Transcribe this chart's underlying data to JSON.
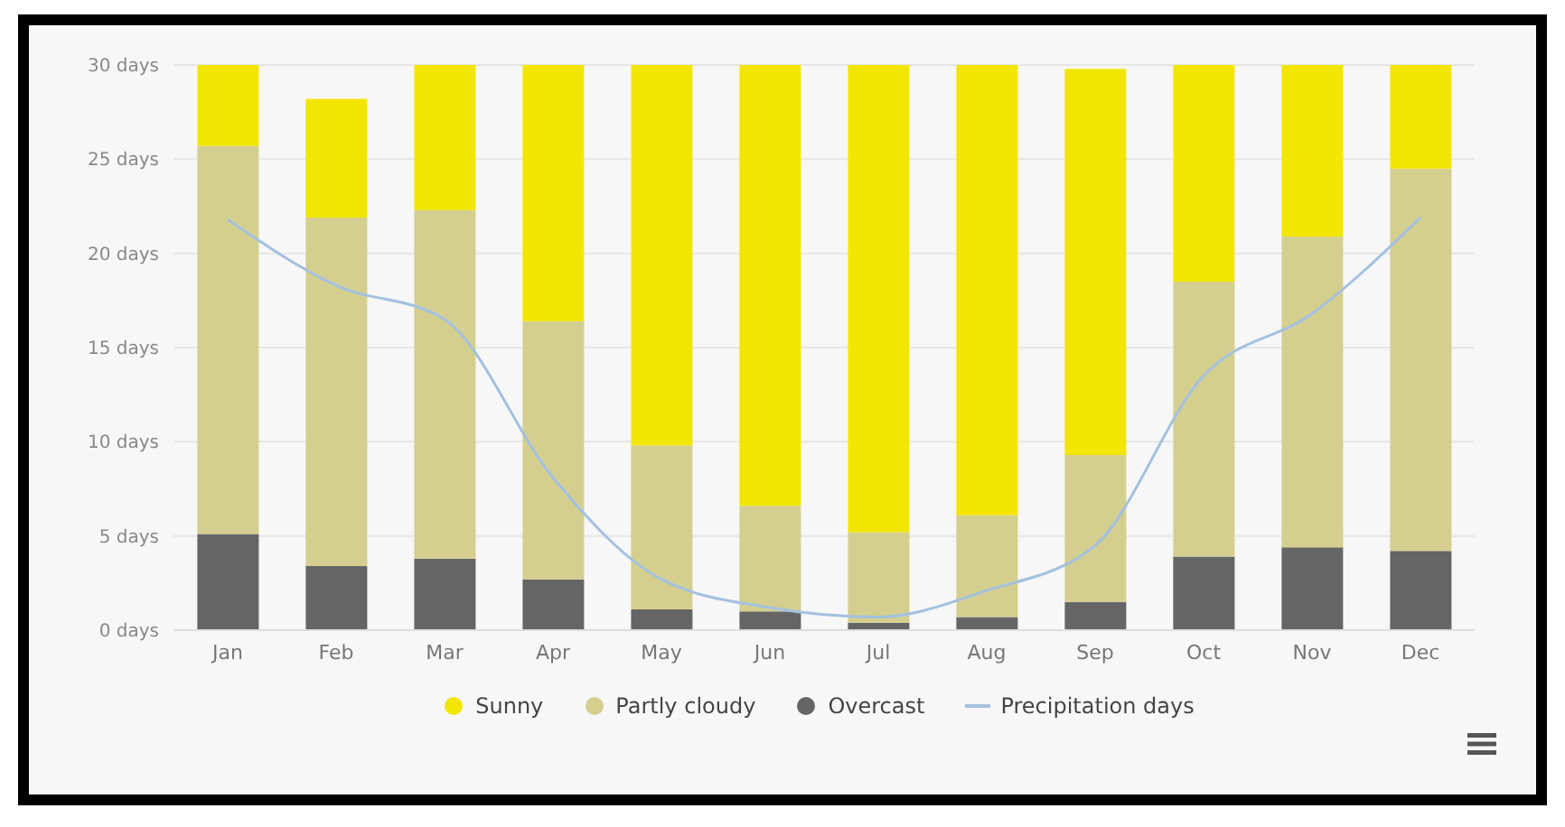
{
  "chart_data": {
    "type": "bar",
    "stacked": true,
    "categories": [
      "Jan",
      "Feb",
      "Mar",
      "Apr",
      "May",
      "Jun",
      "Jul",
      "Aug",
      "Sep",
      "Oct",
      "Nov",
      "Dec"
    ],
    "series": [
      {
        "name": "Overcast",
        "color": "#656565",
        "values": [
          5.1,
          3.4,
          3.8,
          2.7,
          1.1,
          1.0,
          0.4,
          0.7,
          1.5,
          3.9,
          4.4,
          4.2
        ]
      },
      {
        "name": "Partly cloudy",
        "color": "#d4cf8f",
        "values": [
          20.6,
          18.5,
          18.5,
          13.7,
          8.7,
          5.6,
          4.8,
          5.4,
          7.8,
          14.6,
          16.5,
          20.3
        ]
      },
      {
        "name": "Sunny",
        "color": "#f2e600",
        "values": [
          4.3,
          6.3,
          7.7,
          13.6,
          20.2,
          23.4,
          24.8,
          23.9,
          20.5,
          11.5,
          9.1,
          5.5
        ]
      },
      {
        "name": "Precipitation days",
        "type": "line",
        "color": "#a3c1e0",
        "values": [
          21.8,
          18.3,
          16.5,
          8.1,
          2.7,
          1.2,
          0.7,
          2.1,
          4.5,
          13.5,
          16.8,
          21.9
        ]
      }
    ],
    "ylim": [
      0,
      30
    ],
    "yticks": [
      {
        "value": 0,
        "label": "0 days"
      },
      {
        "value": 5,
        "label": "5 days"
      },
      {
        "value": 10,
        "label": "10 days"
      },
      {
        "value": 15,
        "label": "15 days"
      },
      {
        "value": 20,
        "label": "20 days"
      },
      {
        "value": 25,
        "label": "25 days"
      },
      {
        "value": 30,
        "label": "30 days"
      }
    ],
    "grid": "y",
    "legend": "bottom",
    "marker": "none"
  }
}
